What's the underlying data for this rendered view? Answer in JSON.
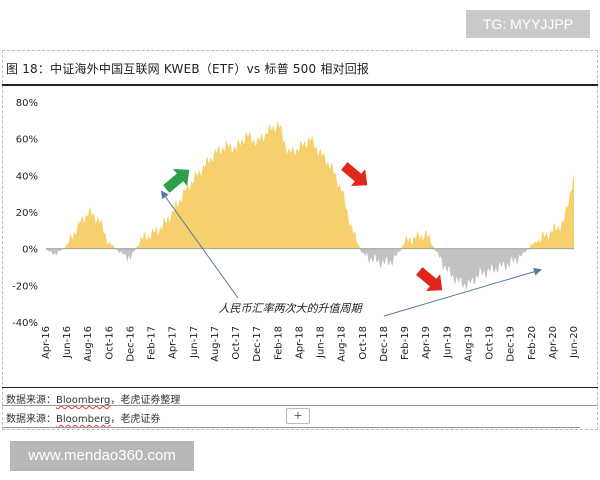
{
  "watermark_top": "TG: MYYJJPP",
  "watermark_bottom": "www.mendao360.com",
  "figure_title": "图 18：中证海外中国互联网 KWEB（ETF）vs 标普 500 相对回报",
  "source_line_1": {
    "prefix": "数据来源：",
    "word": "Bloomberg",
    "suffix": "，老虎证券整理"
  },
  "source_line_2": {
    "prefix": "数据来源：",
    "word": "Bloomberg",
    "suffix": "，老虎证券"
  },
  "plus_label": "+",
  "colors": {
    "positive": "#f5d06d",
    "negative": "#c2c2c2",
    "arrow_green": "#2e9e48",
    "arrow_red": "#e3261c",
    "annotation_line": "#5a7aa0"
  },
  "chart_data": {
    "type": "area",
    "title": "图 18：中证海外中国互联网 KWEB（ETF）vs 标普 500 相对回报",
    "xlabel": "",
    "ylabel": "",
    "ylim": [
      -40,
      80
    ],
    "yticks": [
      "-40%",
      "-20%",
      "0%",
      "20%",
      "40%",
      "60%",
      "80%"
    ],
    "xticks": [
      "Apr-16",
      "Jun-16",
      "Aug-16",
      "Oct-16",
      "Dec-16",
      "Feb-17",
      "Apr-17",
      "Jun-17",
      "Aug-17",
      "Oct-17",
      "Dec-17",
      "Feb-18",
      "Apr-18",
      "Jun-18",
      "Aug-18",
      "Oct-18",
      "Dec-18",
      "Feb-19",
      "Apr-19",
      "Jun-19",
      "Aug-19",
      "Oct-19",
      "Dec-19",
      "Feb-20",
      "Apr-20",
      "Jun-20"
    ],
    "grid": false,
    "legend": "none",
    "series": [
      {
        "x": [
          "2016-04",
          "2016-05",
          "2016-06",
          "2016-07",
          "2016-08",
          "2016-09",
          "2016-10",
          "2016-11",
          "2016-12",
          "2017-01",
          "2017-02",
          "2017-03",
          "2017-04",
          "2017-05",
          "2017-06",
          "2017-07",
          "2017-08",
          "2017-09",
          "2017-10",
          "2017-11",
          "2017-12",
          "2018-01",
          "2018-02",
          "2018-03",
          "2018-04",
          "2018-05",
          "2018-06",
          "2018-07",
          "2018-08",
          "2018-09",
          "2018-10",
          "2018-11",
          "2018-12",
          "2019-01",
          "2019-02",
          "2019-03",
          "2019-04",
          "2019-05",
          "2019-06",
          "2019-07",
          "2019-08",
          "2019-09",
          "2019-10",
          "2019-11",
          "2019-12",
          "2020-01",
          "2020-02",
          "2020-03",
          "2020-04",
          "2020-05",
          "2020-06"
        ],
        "values": [
          -1,
          -3,
          2,
          12,
          20,
          16,
          3,
          -2,
          -5,
          5,
          8,
          12,
          20,
          30,
          38,
          45,
          52,
          56,
          55,
          62,
          58,
          64,
          68,
          52,
          55,
          60,
          52,
          45,
          32,
          10,
          -3,
          -6,
          -8,
          -6,
          4,
          6,
          8,
          -2,
          -12,
          -18,
          -20,
          -14,
          -12,
          -10,
          -8,
          -4,
          2,
          6,
          10,
          14,
          40
        ]
      }
    ],
    "annotations": [
      {
        "text": "人民币汇率两次大的升值周期"
      }
    ]
  }
}
